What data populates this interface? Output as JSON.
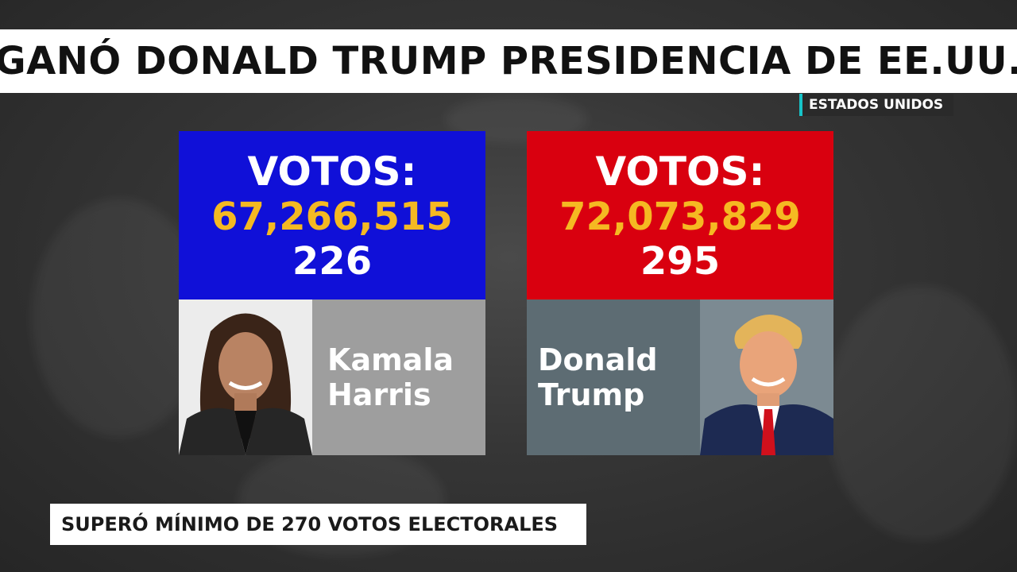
{
  "headline": "GANÓ DONALD TRUMP PRESIDENCIA DE EE.UU.",
  "region_tag": "ESTADOS UNIDOS",
  "candidates": [
    {
      "votes_label": "VOTOS:",
      "popular_votes": "67,266,515",
      "electoral_votes": "226",
      "first_name": "Kamala",
      "last_name": "Harris",
      "color": "#1010d8"
    },
    {
      "votes_label": "VOTOS:",
      "popular_votes": "72,073,829",
      "electoral_votes": "295",
      "first_name": "Donald",
      "last_name": "Trump",
      "color": "#d9000f"
    }
  ],
  "footer": "SUPERÓ MÍNIMO DE 270 VOTOS ELECTORALES",
  "colors": {
    "accent_gold": "#f5b922",
    "tag_accent": "#17c3c8"
  }
}
